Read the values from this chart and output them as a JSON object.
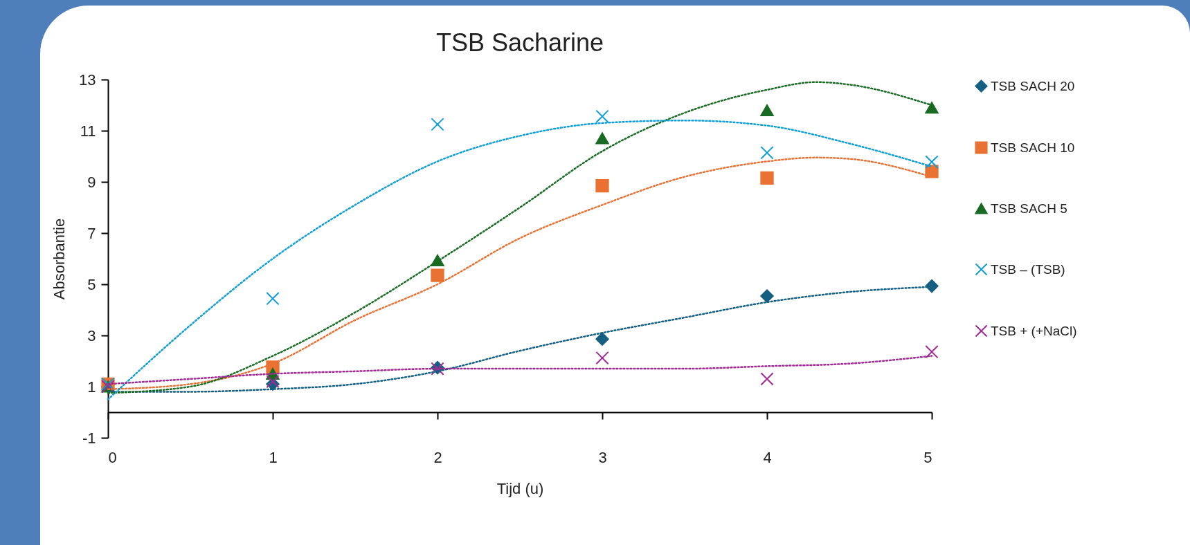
{
  "chart_data": {
    "type": "scatter",
    "title": "TSB Sacharine",
    "xlabel": "Tijd (u)",
    "ylabel": "Absorbantie",
    "xlim": [
      0,
      5
    ],
    "xticks": [
      0,
      1,
      2,
      3,
      4,
      5
    ],
    "ylim": [
      -1,
      13
    ],
    "yticks": [
      -1,
      1,
      3,
      5,
      7,
      9,
      11,
      13
    ],
    "grid": false,
    "legend": "right",
    "x": [
      0,
      1,
      2,
      3,
      4,
      5
    ],
    "series": [
      {
        "name": "TSB SACH 20",
        "marker": "diamond",
        "color": "#156082",
        "values": [
          null,
          1.1,
          1.74,
          2.86,
          4.54,
          4.93
        ]
      },
      {
        "name": "TSB SACH 10",
        "marker": "square",
        "color": "#e97132",
        "values": [
          1.1,
          1.76,
          5.35,
          8.85,
          9.15,
          9.41
        ]
      },
      {
        "name": "TSB SACH 5",
        "marker": "triangle",
        "color": "#196b24",
        "values": [
          1.0,
          1.5,
          5.93,
          10.7,
          11.8,
          11.9
        ]
      },
      {
        "name": "TSB – (TSB)",
        "marker": "cross",
        "color": "#0f9ed5",
        "values": [
          1.1,
          4.44,
          11.25,
          11.56,
          10.14,
          9.78
        ]
      },
      {
        "name": "TSB + (+NaCl)",
        "marker": "cross",
        "color": "#a02b93",
        "values": [
          1.0,
          1.2,
          1.7,
          2.12,
          1.3,
          2.36
        ]
      },
      {
        "type": "line",
        "line_style": "dotted",
        "marker": "none",
        "color": "#156082",
        "x": [
          0,
          0.5,
          1,
          1.5,
          2,
          2.5,
          3,
          3.5,
          4,
          4.5,
          5
        ],
        "values": [
          0.8,
          0.8,
          0.9,
          1.1,
          1.6,
          2.4,
          3.1,
          3.7,
          4.3,
          4.7,
          4.9
        ]
      },
      {
        "type": "line",
        "line_style": "dotted",
        "marker": "none",
        "color": "#e97132",
        "x": [
          0,
          0.5,
          1,
          1.5,
          2,
          2.5,
          3,
          3.5,
          4,
          4.3,
          4.5,
          5
        ],
        "values": [
          0.9,
          1.1,
          1.9,
          3.6,
          5.0,
          6.8,
          8.1,
          9.2,
          9.8,
          9.95,
          9.9,
          9.2
        ]
      },
      {
        "type": "line",
        "line_style": "dotted",
        "marker": "none",
        "color": "#196b24",
        "x": [
          0,
          0.5,
          1,
          1.5,
          2,
          2.5,
          3,
          3.5,
          4,
          4.3,
          4.5,
          5
        ],
        "values": [
          0.75,
          1.0,
          2.2,
          3.9,
          5.9,
          8.0,
          10.2,
          11.7,
          12.6,
          12.9,
          12.8,
          12.0
        ]
      },
      {
        "type": "line",
        "line_style": "dotted",
        "marker": "none",
        "color": "#0f9ed5",
        "x": [
          0,
          0.5,
          1,
          1.5,
          2,
          2.5,
          3,
          3.5,
          4,
          4.5,
          5
        ],
        "values": [
          0.5,
          3.4,
          6.0,
          8.1,
          9.8,
          10.8,
          11.3,
          11.4,
          11.2,
          10.5,
          9.6
        ]
      },
      {
        "type": "line",
        "line_style": "dotted",
        "marker": "none",
        "color": "#a02b93",
        "x": [
          0,
          0.5,
          1,
          1.5,
          2,
          2.5,
          3,
          3.5,
          4,
          4.5,
          5
        ],
        "values": [
          1.1,
          1.3,
          1.5,
          1.6,
          1.7,
          1.7,
          1.7,
          1.7,
          1.8,
          1.9,
          2.2
        ]
      }
    ]
  }
}
